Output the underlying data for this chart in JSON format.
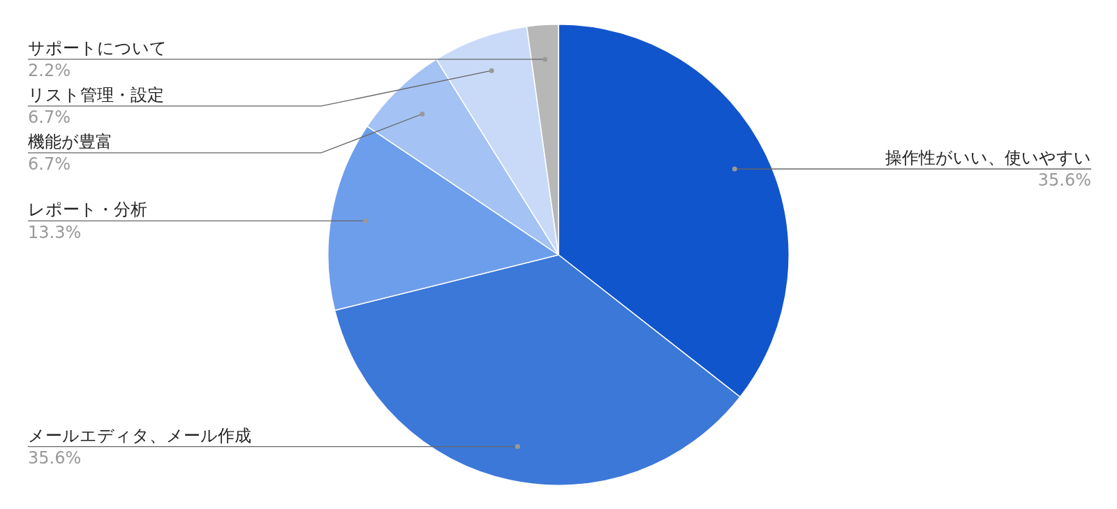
{
  "chart_data": {
    "type": "pie",
    "categories": [
      "操作性がいい、使いやすい",
      "メールエディタ、メール作成",
      "レポート・分析",
      "機能が豊富",
      "リスト管理・設定",
      "サポートについて"
    ],
    "values": [
      35.6,
      35.6,
      13.3,
      6.7,
      6.7,
      2.2
    ],
    "value_labels": [
      "35.6%",
      "35.6%",
      "13.3%",
      "6.7%",
      "6.7%",
      "2.2%"
    ],
    "colors": [
      "#1155cc",
      "#3c78d8",
      "#6d9eeb",
      "#a4c2f4",
      "#c9daf8",
      "#b7b7b7"
    ],
    "legend": false
  }
}
